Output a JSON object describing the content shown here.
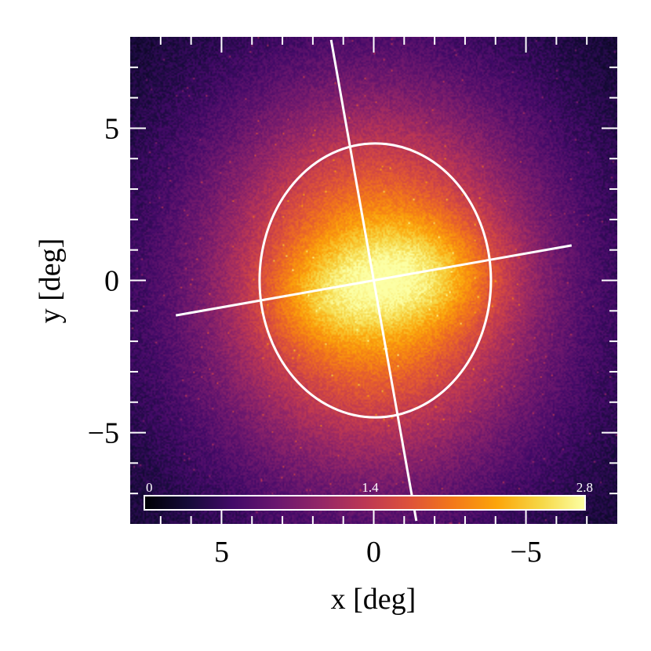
{
  "chart_data": {
    "type": "heatmap",
    "title": "",
    "xlabel": "x [deg]",
    "ylabel": "y [deg]",
    "xlim": [
      8,
      -8
    ],
    "ylim": [
      -8,
      8
    ],
    "x_inverted": true,
    "xticks": [
      5,
      0,
      -5
    ],
    "yticks": [
      5,
      0,
      -5
    ],
    "xtick_labels": [
      "5",
      "0",
      "−5"
    ],
    "ytick_labels": [
      "5",
      "0",
      "−5"
    ],
    "minor_tick_step": 1,
    "grid": false,
    "colormap": "inferno",
    "colorbar": {
      "min": 0,
      "max": 2.8,
      "tick_values": [
        0,
        1.4,
        2.8
      ],
      "tick_labels": [
        "0",
        "1.4",
        "2.8"
      ],
      "placement": "bottom-inset"
    },
    "intensity_components": [
      {
        "cx": 0.0,
        "cy": -0.2,
        "sx": 7.0,
        "sy": 8.0,
        "amp": 1.25
      },
      {
        "cx": 0.0,
        "cy": 0.0,
        "sx": 4.2,
        "sy": 4.8,
        "amp": 0.9
      },
      {
        "cx": -1.5,
        "cy": 0.2,
        "sx": 2.6,
        "sy": 1.7,
        "amp": 0.6
      },
      {
        "cx": 1.6,
        "cy": -0.6,
        "sx": 2.0,
        "sy": 1.5,
        "amp": 0.35
      }
    ],
    "ellipse": {
      "cx": -0.05,
      "cy": 0.0,
      "a": 3.8,
      "b": 4.5,
      "angle_deg": 0,
      "color": "#ffffff"
    },
    "axis_lines": [
      {
        "x1": 6.5,
        "y1": -1.15,
        "x2": -6.5,
        "y2": 1.15,
        "color": "#ffffff"
      },
      {
        "x1": 1.4,
        "y1": 7.9,
        "x2": -1.4,
        "y2": -7.9,
        "color": "#ffffff"
      }
    ],
    "frame_color": "#ffffff"
  }
}
